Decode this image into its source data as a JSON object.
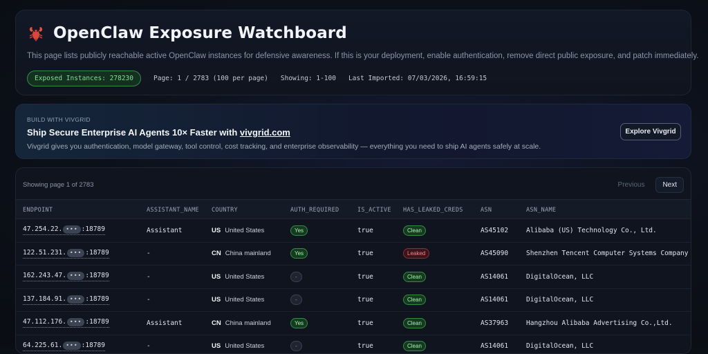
{
  "header": {
    "title": "OpenClaw Exposure Watchboard",
    "description": "This page lists publicly reachable active OpenClaw instances for defensive awareness. If this is your deployment, enable authentication, remove direct public exposure, and patch immediately.",
    "exposed_label": "Exposed Instances: 278230",
    "page_info": "Page: 1 / 2783 (100 per page)",
    "showing_info": "Showing: 1-100",
    "last_imported": "Last Imported: 07/03/2026, 16:59:15"
  },
  "promo": {
    "kicker": "BUILD WITH VIVGRID",
    "title_prefix": "Ship Secure Enterprise AI Agents 10× Faster with ",
    "title_link": "vivgrid.com",
    "description": "Vivgrid gives you authentication, model gateway, tool control, cost tracking, and enterprise observability — everything you need to ship AI agents safely at scale.",
    "button_label": "Explore Vivgrid"
  },
  "table": {
    "showing_text": "Showing page 1 of 2783",
    "prev_label": "Previous",
    "next_label": "Next",
    "columns": [
      "ENDPOINT",
      "ASSISTANT_NAME",
      "COUNTRY",
      "AUTH_REQUIRED",
      "IS_ACTIVE",
      "HAS_LEAKED_CREDS",
      "ASN",
      "ASN_NAME"
    ],
    "rows": [
      {
        "ip_prefix": "47.254.22.",
        "mask": "•••",
        "port": ":18789",
        "assistant": "Assistant",
        "cc": "US",
        "country": "United States",
        "auth": "Yes",
        "active": "true",
        "creds": "Clean",
        "asn": "AS45102",
        "asn_name": "Alibaba (US) Technology Co., Ltd."
      },
      {
        "ip_prefix": "122.51.231.",
        "mask": "•••",
        "port": ":18789",
        "assistant": "-",
        "cc": "CN",
        "country": "China mainland",
        "auth": "Yes",
        "active": "true",
        "creds": "Leaked",
        "asn": "AS45090",
        "asn_name": "Shenzhen Tencent Computer Systems Company"
      },
      {
        "ip_prefix": "162.243.47.",
        "mask": "•••",
        "port": ":18789",
        "assistant": "-",
        "cc": "US",
        "country": "United States",
        "auth": "-",
        "active": "true",
        "creds": "Clean",
        "asn": "AS14061",
        "asn_name": "DigitalOcean, LLC"
      },
      {
        "ip_prefix": "137.184.91.",
        "mask": "•••",
        "port": ":18789",
        "assistant": "-",
        "cc": "US",
        "country": "United States",
        "auth": "-",
        "active": "true",
        "creds": "Clean",
        "asn": "AS14061",
        "asn_name": "DigitalOcean, LLC"
      },
      {
        "ip_prefix": "47.112.176.",
        "mask": "•••",
        "port": ":18789",
        "assistant": "Assistant",
        "cc": "CN",
        "country": "China mainland",
        "auth": "Yes",
        "active": "true",
        "creds": "Clean",
        "asn": "AS37963",
        "asn_name": "Hangzhou Alibaba Advertising Co.,Ltd."
      },
      {
        "ip_prefix": "64.225.61.",
        "mask": "•••",
        "port": ":18789",
        "assistant": "-",
        "cc": "US",
        "country": "United States",
        "auth": "-",
        "active": "true",
        "creds": "Clean",
        "asn": "AS14061",
        "asn_name": "DigitalOcean, LLC"
      }
    ]
  },
  "colors": {
    "accent_green": "#2f8f45",
    "leaked_red": "#8c2f38",
    "background": "#0b0f16"
  }
}
